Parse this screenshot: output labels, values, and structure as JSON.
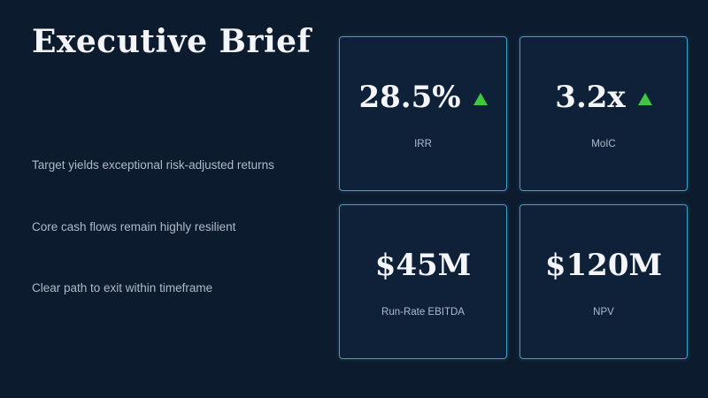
{
  "slide": {
    "title": "Executive Brief",
    "bullets": [
      "Target yields exceptional risk-adjusted returns",
      "Core cash flows remain highly resilient",
      "Clear path to exit within timeframe"
    ]
  },
  "kpis": [
    {
      "value": "28.5%",
      "label": "IRR",
      "trend": "up-arrow-icon"
    },
    {
      "value": "3.2x",
      "label": "MoIC",
      "trend": "up-arrow-icon"
    },
    {
      "value": "$45M",
      "label": "Run-Rate EBITDA"
    },
    {
      "value": "$120M",
      "label": "NPV"
    }
  ],
  "colors": {
    "background": "#0d1b2e",
    "card_border": "#3aa3c7",
    "trend_up": "#3ec83e"
  }
}
